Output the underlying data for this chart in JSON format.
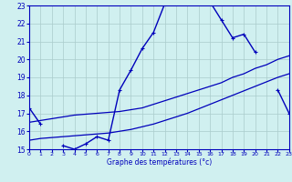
{
  "xlabel": "Graphe des températures (°c)",
  "background_color": "#d0f0f0",
  "grid_color": "#aacccc",
  "line_color": "#0000bb",
  "xmin": 0,
  "xmax": 23,
  "ymin": 15,
  "ymax": 23,
  "hours": [
    0,
    1,
    2,
    3,
    4,
    5,
    6,
    7,
    8,
    9,
    10,
    11,
    12,
    13,
    14,
    15,
    16,
    17,
    18,
    19,
    20,
    21,
    22,
    23
  ],
  "temp_main": [
    17.3,
    16.4,
    null,
    15.2,
    15.0,
    15.3,
    15.7,
    15.5,
    18.3,
    19.4,
    20.6,
    21.5,
    23.1,
    23.3,
    23.3,
    23.3,
    23.2,
    22.2,
    21.2,
    21.4,
    20.4,
    null,
    18.3,
    17.0
  ],
  "temp_line1": [
    16.5,
    16.6,
    16.7,
    16.8,
    16.9,
    16.95,
    17.0,
    17.05,
    17.1,
    17.2,
    17.3,
    17.5,
    17.7,
    17.9,
    18.1,
    18.3,
    18.5,
    18.7,
    19.0,
    19.2,
    19.5,
    19.7,
    20.0,
    20.2
  ],
  "temp_line2": [
    15.5,
    15.6,
    15.65,
    15.7,
    15.75,
    15.8,
    15.85,
    15.9,
    16.0,
    16.1,
    16.25,
    16.4,
    16.6,
    16.8,
    17.0,
    17.25,
    17.5,
    17.75,
    18.0,
    18.25,
    18.5,
    18.75,
    19.0,
    19.2
  ]
}
